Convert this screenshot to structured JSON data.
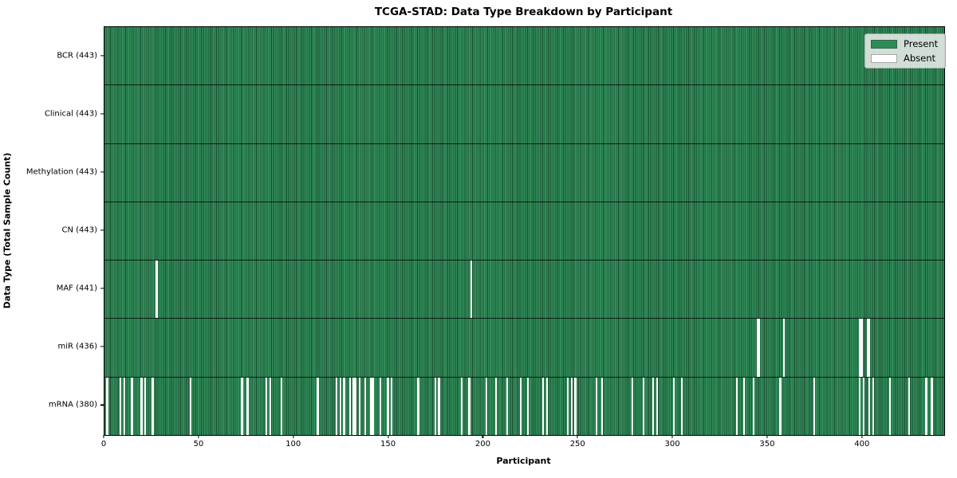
{
  "figure": {
    "title": "TCGA-STAD: Data Type Breakdown by Participant",
    "xlabel": "Participant",
    "ylabel": "Data Type (Total Sample Count)"
  },
  "chart_data": {
    "type": "heatmap",
    "title": "TCGA-STAD: Data Type Breakdown by Participant",
    "xlabel": "Participant",
    "ylabel": "Data Type (Total Sample Count)",
    "n_participants": 443,
    "xlim": [
      0,
      443
    ],
    "x_ticks": [
      0,
      50,
      100,
      150,
      200,
      250,
      300,
      350,
      400
    ],
    "grid": false,
    "cell_states": [
      "Present",
      "Absent"
    ],
    "colors": {
      "present": "#2e8b57",
      "absent": "#ffffff",
      "cell_edge": "#1b4d31"
    },
    "legend": {
      "position": "upper-right",
      "entries": [
        {
          "label": "Present",
          "color": "#2e8b57"
        },
        {
          "label": "Absent",
          "color": "#ffffff"
        }
      ]
    },
    "rows": [
      {
        "label": "BCR (443)",
        "data_type": "BCR",
        "present_count": 443,
        "absent_participants": []
      },
      {
        "label": "Clinical (443)",
        "data_type": "Clinical",
        "present_count": 443,
        "absent_participants": []
      },
      {
        "label": "Methylation (443)",
        "data_type": "Methylation",
        "present_count": 443,
        "absent_participants": []
      },
      {
        "label": "CN (443)",
        "data_type": "CN",
        "present_count": 443,
        "absent_participants": []
      },
      {
        "label": "MAF (441)",
        "data_type": "MAF",
        "present_count": 441,
        "absent_participants": [
          27,
          193
        ]
      },
      {
        "label": "miR (436)",
        "data_type": "miR",
        "present_count": 436,
        "absent_participants": [
          344,
          345,
          358,
          398,
          399,
          402,
          403
        ]
      },
      {
        "label": "mRNA (380)",
        "data_type": "mRNA",
        "present_count": 380,
        "absent_participants": [
          1,
          8,
          10,
          14,
          19,
          21,
          25,
          45,
          72,
          75,
          85,
          87,
          93,
          112,
          122,
          124,
          126,
          129,
          131,
          132,
          134,
          137,
          140,
          141,
          145,
          149,
          151,
          165,
          174,
          176,
          188,
          192,
          201,
          206,
          212,
          219,
          223,
          231,
          233,
          244,
          246,
          248,
          259,
          262,
          278,
          284,
          289,
          291,
          300,
          304,
          333,
          337,
          342,
          356,
          374,
          398,
          400,
          403,
          405,
          414,
          424,
          433,
          436
        ]
      }
    ]
  }
}
